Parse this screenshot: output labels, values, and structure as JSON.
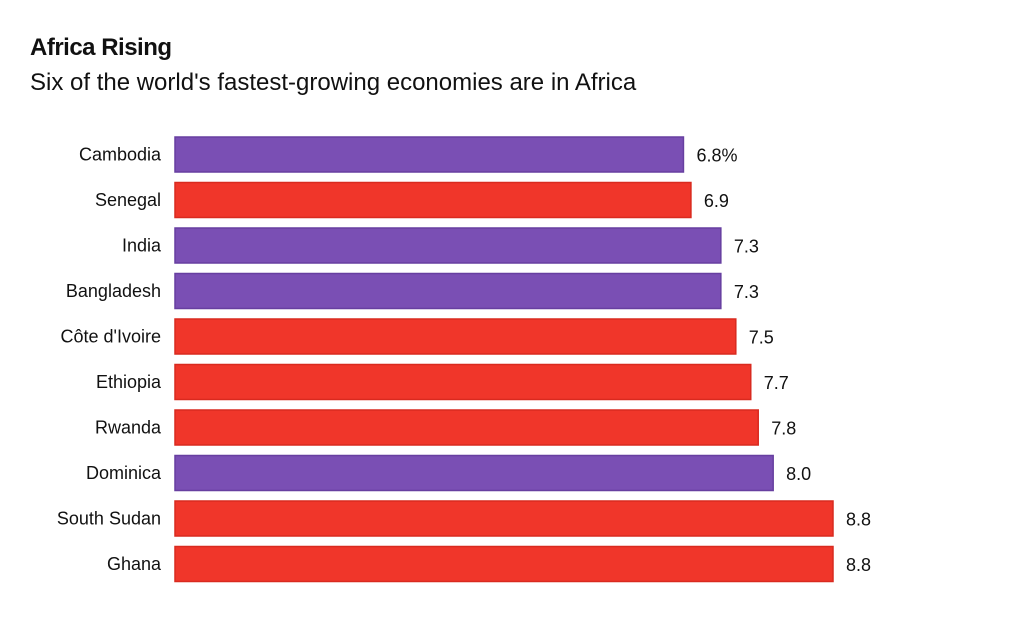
{
  "chart_data": {
    "type": "bar",
    "orientation": "horizontal",
    "title": "Africa Rising",
    "subtitle": "Six of the world's fastest-growing economies are in Africa",
    "categories": [
      "Cambodia",
      "Senegal",
      "India",
      "Bangladesh",
      "Côte d'Ivoire",
      "Ethiopia",
      "Rwanda",
      "Dominica",
      "South Sudan",
      "Ghana"
    ],
    "values": [
      6.8,
      6.9,
      7.3,
      7.3,
      7.5,
      7.7,
      7.8,
      8.0,
      8.8,
      8.8
    ],
    "value_labels": [
      "6.8%",
      "6.9",
      "7.3",
      "7.3",
      "7.5",
      "7.7",
      "7.8",
      "8.0",
      "8.8",
      "8.8"
    ],
    "is_africa": [
      false,
      true,
      false,
      false,
      true,
      true,
      true,
      false,
      true,
      true
    ],
    "colors": {
      "africa": "#f0362a",
      "other": "#7a4fb4"
    },
    "xlim": [
      0,
      8.8
    ],
    "grid": false
  }
}
